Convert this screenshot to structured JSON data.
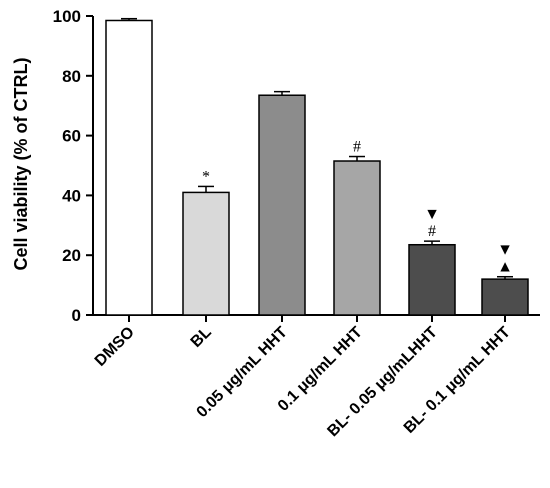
{
  "chart_data": {
    "type": "bar",
    "title": "",
    "xlabel": "",
    "ylabel": "Cell viability (% of CTRL)",
    "ylim": [
      0,
      100
    ],
    "yticks": [
      0,
      20,
      40,
      60,
      80,
      100
    ],
    "categories": [
      "DMSO",
      "BL",
      "0.05 μg/mL HHT",
      "0.1 μg/mL HHT",
      "BL- 0.05 μg/mLHHT",
      "BL- 0.1 μg/mL HHT"
    ],
    "values": [
      98.5,
      41,
      73.5,
      51.5,
      23.5,
      12
    ],
    "errors": [
      0.6,
      2.0,
      1.2,
      1.5,
      1.2,
      0.8
    ],
    "colors": [
      "#ffffff",
      "#d9d9d9",
      "#8c8c8c",
      "#a6a6a6",
      "#4d4d4d",
      "#4d4d4d"
    ],
    "annotations": [
      {
        "bar": 1,
        "marks": [
          "*"
        ]
      },
      {
        "bar": 3,
        "marks": [
          "#"
        ]
      },
      {
        "bar": 4,
        "marks": [
          "#",
          "▼"
        ]
      },
      {
        "bar": 5,
        "marks": [
          "▲",
          "▼"
        ]
      }
    ],
    "grid": false
  }
}
